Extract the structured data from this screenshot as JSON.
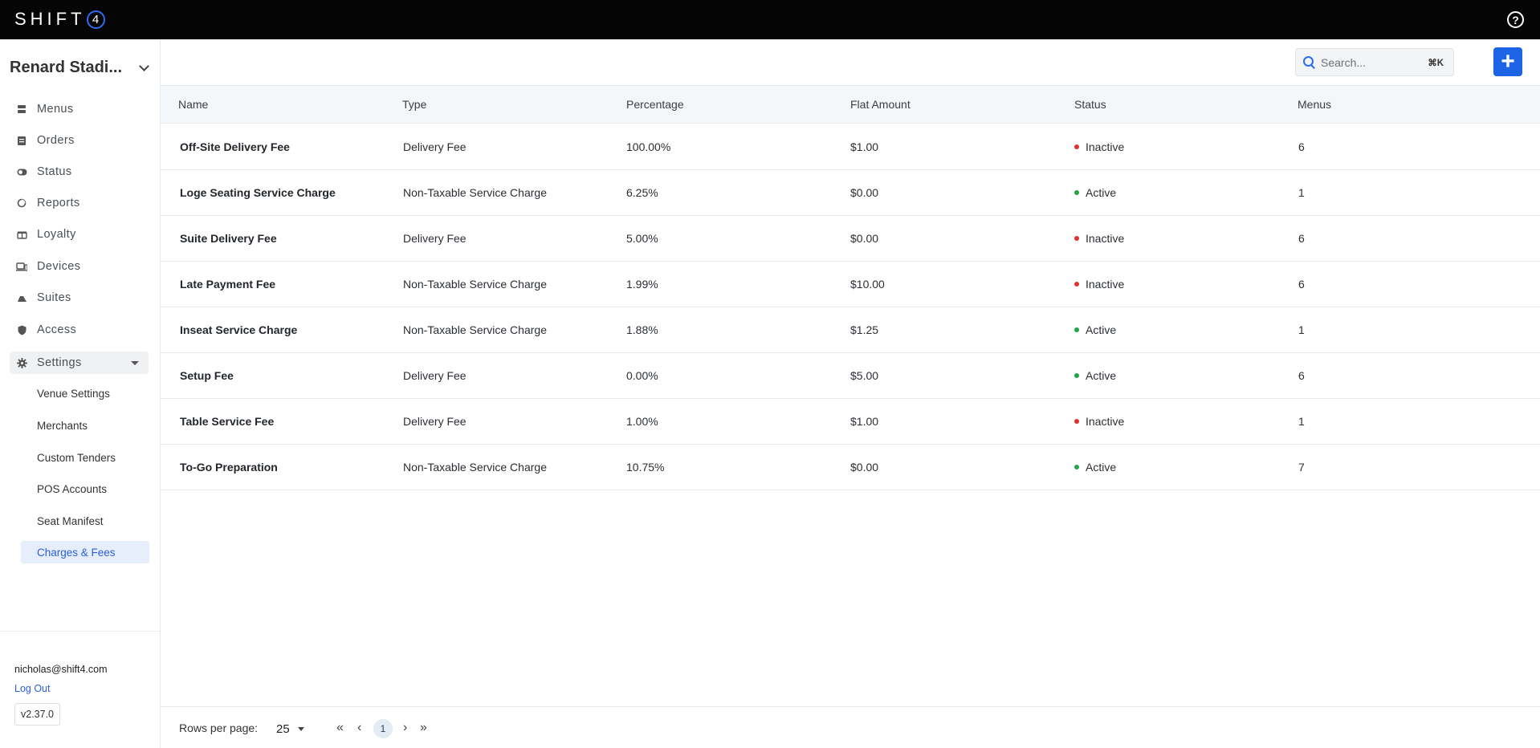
{
  "app": {
    "logo_text": "SHIFT",
    "logo_mark": "4"
  },
  "topbar": {
    "help_icon": "help-circle-icon"
  },
  "venue": {
    "name": "Renard Stadi..."
  },
  "nav": {
    "items": [
      {
        "label": "Menus",
        "icon": "menus-icon"
      },
      {
        "label": "Orders",
        "icon": "orders-icon"
      },
      {
        "label": "Status",
        "icon": "status-icon"
      },
      {
        "label": "Reports",
        "icon": "reports-icon"
      },
      {
        "label": "Loyalty",
        "icon": "loyalty-icon"
      },
      {
        "label": "Devices",
        "icon": "devices-icon"
      },
      {
        "label": "Suites",
        "icon": "suites-icon"
      },
      {
        "label": "Access",
        "icon": "shield-icon"
      }
    ],
    "settings_label": "Settings",
    "settings_sub": [
      {
        "label": "Venue Settings"
      },
      {
        "label": "Merchants"
      },
      {
        "label": "Custom Tenders"
      },
      {
        "label": "POS Accounts"
      },
      {
        "label": "Seat Manifest"
      },
      {
        "label": "Charges & Fees",
        "active": true
      }
    ]
  },
  "footer": {
    "email": "nicholas@shift4.com",
    "logout": "Log Out",
    "version": "v2.37.0"
  },
  "search": {
    "placeholder": "Search...",
    "shortcut": "⌘K"
  },
  "table": {
    "headers": [
      "Name",
      "Type",
      "Percentage",
      "Flat Amount",
      "Status",
      "Menus"
    ],
    "rows": [
      {
        "name": "Off-Site Delivery Fee",
        "type": "Delivery Fee",
        "percentage": "100.00%",
        "flat": "$1.00",
        "status": "Inactive",
        "menus": "6"
      },
      {
        "name": "Loge Seating Service Charge",
        "type": "Non-Taxable Service Charge",
        "percentage": "6.25%",
        "flat": "$0.00",
        "status": "Active",
        "menus": "1"
      },
      {
        "name": "Suite Delivery Fee",
        "type": "Delivery Fee",
        "percentage": "5.00%",
        "flat": "$0.00",
        "status": "Inactive",
        "menus": "6"
      },
      {
        "name": "Late Payment Fee",
        "type": "Non-Taxable Service Charge",
        "percentage": "1.99%",
        "flat": "$10.00",
        "status": "Inactive",
        "menus": "6"
      },
      {
        "name": "Inseat Service Charge",
        "type": "Non-Taxable Service Charge",
        "percentage": "1.88%",
        "flat": "$1.25",
        "status": "Active",
        "menus": "1"
      },
      {
        "name": "Setup Fee",
        "type": "Delivery Fee",
        "percentage": "0.00%",
        "flat": "$5.00",
        "status": "Active",
        "menus": "6"
      },
      {
        "name": "Table Service Fee",
        "type": "Delivery Fee",
        "percentage": "1.00%",
        "flat": "$1.00",
        "status": "Inactive",
        "menus": "1"
      },
      {
        "name": "To-Go Preparation",
        "type": "Non-Taxable Service Charge",
        "percentage": "10.75%",
        "flat": "$0.00",
        "status": "Active",
        "menus": "7"
      }
    ]
  },
  "status_colors": {
    "Active": "#22a447",
    "Inactive": "#e0322c"
  },
  "pager": {
    "rows_label": "Rows per page:",
    "rows_value": "25",
    "first": "«",
    "prev": "‹",
    "page": "1",
    "next": "›",
    "last": "»"
  }
}
